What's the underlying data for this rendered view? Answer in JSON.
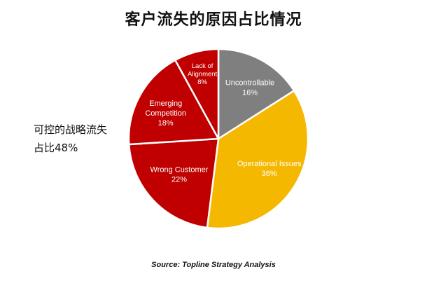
{
  "chart_data": {
    "type": "pie",
    "title": "客户流失的原因占比情况",
    "slices": [
      {
        "name": "Uncontrollable",
        "value": 16,
        "label": "16%",
        "color": "#7f7f7f",
        "text_color": "#ffffff"
      },
      {
        "name": "Operational Issues",
        "value": 36,
        "label": "36%",
        "color": "#f5b800",
        "text_color": "#1a1a1a"
      },
      {
        "name": "Wrong Customer",
        "value": 22,
        "label": "22%",
        "color": "#c00000",
        "text_color": "#ffffff"
      },
      {
        "name": "Emerging Competition",
        "value": 18,
        "label": "18%",
        "color": "#c00000",
        "text_color": "#ffffff"
      },
      {
        "name": "Lack of Alignment",
        "value": 8,
        "label": "8%",
        "color": "#c00000",
        "text_color": "#ffffff"
      }
    ]
  },
  "annotation": {
    "line1": "可控的战略流失",
    "line2": "占比48%"
  },
  "source": {
    "label": "Source:",
    "text": "Topline Strategy Analysis"
  }
}
